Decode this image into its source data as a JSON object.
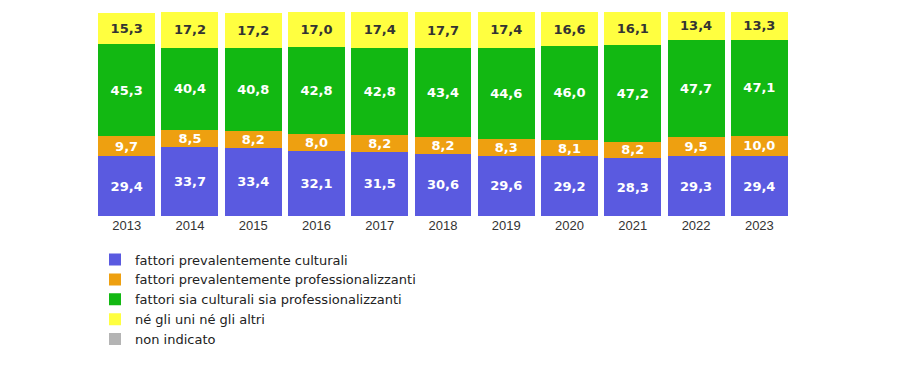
{
  "chart_data": {
    "type": "bar",
    "stacked": true,
    "data_labels": true,
    "grid": false,
    "tick_labels": "x",
    "legend": "bottom",
    "categories": [
      "2013",
      "2014",
      "2015",
      "2016",
      "2017",
      "2018",
      "2019",
      "2020",
      "2021",
      "2022",
      "2023"
    ],
    "ylim": [
      0,
      100
    ],
    "series": [
      {
        "name": "fattori prevalentemente culturali",
        "color": "#5a5ae0",
        "values": [
          29.4,
          33.7,
          33.4,
          32.1,
          31.5,
          30.6,
          29.6,
          29.2,
          28.3,
          29.3,
          29.4
        ],
        "value_labels": [
          "29,4",
          "33,7",
          "33,4",
          "32,1",
          "31,5",
          "30,6",
          "29,6",
          "29,2",
          "28,3",
          "29,3",
          "29,4"
        ]
      },
      {
        "name": "fattori prevalentemente professionalizzanti",
        "color": "#eea010",
        "values": [
          9.7,
          8.5,
          8.2,
          8.0,
          8.2,
          8.2,
          8.3,
          8.1,
          8.2,
          9.5,
          10.0
        ],
        "value_labels": [
          "9,7",
          "8,5",
          "8,2",
          "8,0",
          "8,2",
          "8,2",
          "8,3",
          "8,1",
          "8,2",
          "9,5",
          "10,0"
        ]
      },
      {
        "name": "fattori sia culturali sia professionalizzanti",
        "color": "#12b812",
        "values": [
          45.3,
          40.4,
          40.8,
          42.8,
          42.8,
          43.4,
          44.6,
          46.0,
          47.2,
          47.7,
          47.1
        ],
        "value_labels": [
          "45,3",
          "40,4",
          "40,8",
          "42,8",
          "42,8",
          "43,4",
          "44,6",
          "46,0",
          "47,2",
          "47,7",
          "47,1"
        ]
      },
      {
        "name": "né gli uni né gli altri",
        "color": "#ffff40",
        "values": [
          15.3,
          17.2,
          17.2,
          17.0,
          17.4,
          17.7,
          17.4,
          16.6,
          16.1,
          13.4,
          13.3
        ],
        "value_labels": [
          "15,3",
          "17,2",
          "17,2",
          "17,0",
          "17,4",
          "17,7",
          "17,4",
          "16,6",
          "16,1",
          "13,4",
          "13,3"
        ]
      },
      {
        "name": "non indicato",
        "color": "#b4b4b4",
        "values": [
          null,
          null,
          null,
          null,
          null,
          null,
          null,
          null,
          null,
          null,
          null
        ]
      }
    ]
  }
}
